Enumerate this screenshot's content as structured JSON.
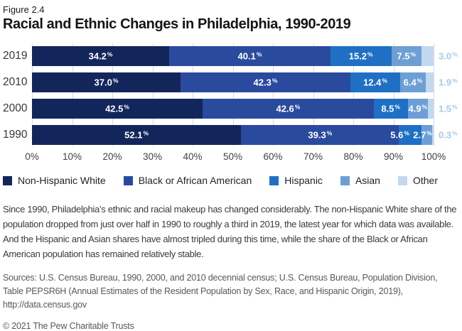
{
  "figure_label": "Figure 2.4",
  "title": "Racial and Ethnic Changes in Philadelphia, 1990-2019",
  "chart_data": {
    "type": "bar",
    "orientation": "horizontal",
    "stacked": true,
    "categories": [
      "2019",
      "2010",
      "2000",
      "1990"
    ],
    "series": [
      {
        "name": "Non-Hispanic White",
        "color": "#13265c",
        "values": [
          34.2,
          37.0,
          42.5,
          52.1
        ],
        "labels": [
          "34.2",
          "37.0",
          "42.5",
          "52.1"
        ]
      },
      {
        "name": "Black or African American",
        "color": "#2a4a9e",
        "values": [
          40.1,
          42.3,
          42.6,
          39.3
        ],
        "labels": [
          "40.1",
          "42.3",
          "42.6",
          "39.3"
        ]
      },
      {
        "name": "Hispanic",
        "color": "#1f70c4",
        "values": [
          15.2,
          12.4,
          8.5,
          5.6
        ],
        "labels": [
          "15.2",
          "12.4",
          "8.5",
          "5.6"
        ]
      },
      {
        "name": "Asian",
        "color": "#6d9fd5",
        "values": [
          7.5,
          6.4,
          4.9,
          2.7
        ],
        "labels": [
          "7.5",
          "6.4",
          "4.9",
          "2.7"
        ]
      },
      {
        "name": "Other",
        "color": "#c1d8ee",
        "values": [
          3.0,
          1.9,
          1.5,
          0.3
        ],
        "labels": [
          "3.0",
          "1.9",
          "1.5",
          "0.3"
        ]
      }
    ],
    "value_suffix": "%",
    "x_ticks": [
      "0%",
      "10%",
      "20%",
      "30%",
      "40%",
      "50%",
      "60%",
      "70%",
      "80%",
      "90%",
      "100%"
    ],
    "xlim": [
      0,
      100
    ],
    "grid": true,
    "legend_position": "bottom",
    "inside_label_color": "#ffffff",
    "outside_label_color": "#a6cae9"
  },
  "description": "Since 1990, Philadelphia’s ethnic and racial makeup has changed considerably. The non-Hispanic White share of the population dropped from just over half in 1990 to roughly a third in 2019, the latest year for which data was available. And the Hispanic and Asian shares have almost tripled during this time, while the share of the Black or African American population has remained relatively stable.",
  "sources": "Sources: U.S. Census Bureau, 1990, 2000, and 2010 decennial census; U.S. Census Bureau, Population Division, Table PEPSR6H (Annual Estimates of the Resident Population by Sex, Race, and Hispanic Origin, 2019), http://data.census.gov",
  "copyright": "© 2021 The Pew Charitable Trusts"
}
